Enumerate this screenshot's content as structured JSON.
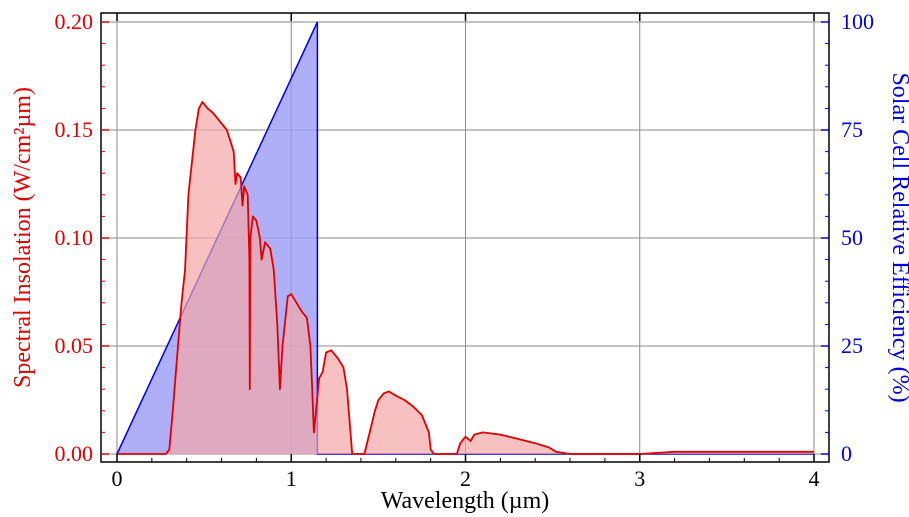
{
  "chart_data": {
    "type": "area",
    "xlabel": "Wavelength (µm)",
    "ylabel_left": "Spectral Insolation (W/cm²µm)",
    "ylabel_right": "Solar Cell Relative Efficiency (%)",
    "xlim": [
      0,
      4
    ],
    "ylim_left": [
      0,
      0.2
    ],
    "ylim_right": [
      0,
      100
    ],
    "x_ticks": [
      "0",
      "1",
      "2",
      "3",
      "4"
    ],
    "y_left_ticks": [
      "0.00",
      "0.05",
      "0.10",
      "0.15",
      "0.20"
    ],
    "y_right_ticks": [
      "0",
      "25",
      "50",
      "75",
      "100"
    ],
    "grid": true,
    "colors": {
      "insolation": "#e00000",
      "insolation_fill": "#f4a6a6",
      "efficiency": "#0000e0",
      "efficiency_fill": "#9b9bf5"
    },
    "series": [
      {
        "axis": "left",
        "color": "#e00000",
        "points": [
          [
            0.0,
            0.0
          ],
          [
            0.28,
            0.0
          ],
          [
            0.3,
            0.002
          ],
          [
            0.32,
            0.02
          ],
          [
            0.35,
            0.05
          ],
          [
            0.37,
            0.07
          ],
          [
            0.39,
            0.085
          ],
          [
            0.41,
            0.12
          ],
          [
            0.43,
            0.135
          ],
          [
            0.45,
            0.15
          ],
          [
            0.47,
            0.16
          ],
          [
            0.49,
            0.163
          ],
          [
            0.52,
            0.16
          ],
          [
            0.55,
            0.158
          ],
          [
            0.58,
            0.155
          ],
          [
            0.6,
            0.153
          ],
          [
            0.63,
            0.15
          ],
          [
            0.65,
            0.145
          ],
          [
            0.67,
            0.14
          ],
          [
            0.68,
            0.125
          ],
          [
            0.69,
            0.13
          ],
          [
            0.71,
            0.128
          ],
          [
            0.72,
            0.115
          ],
          [
            0.73,
            0.124
          ],
          [
            0.75,
            0.12
          ],
          [
            0.76,
            0.09
          ],
          [
            0.762,
            0.03
          ],
          [
            0.765,
            0.1
          ],
          [
            0.78,
            0.11
          ],
          [
            0.8,
            0.108
          ],
          [
            0.82,
            0.1
          ],
          [
            0.83,
            0.09
          ],
          [
            0.85,
            0.098
          ],
          [
            0.88,
            0.095
          ],
          [
            0.9,
            0.085
          ],
          [
            0.92,
            0.06
          ],
          [
            0.935,
            0.03
          ],
          [
            0.95,
            0.05
          ],
          [
            0.98,
            0.073
          ],
          [
            1.0,
            0.074
          ],
          [
            1.03,
            0.07
          ],
          [
            1.06,
            0.066
          ],
          [
            1.09,
            0.063
          ],
          [
            1.11,
            0.05
          ],
          [
            1.12,
            0.03
          ],
          [
            1.13,
            0.01
          ],
          [
            1.14,
            0.018
          ],
          [
            1.16,
            0.035
          ],
          [
            1.18,
            0.038
          ],
          [
            1.2,
            0.047
          ],
          [
            1.23,
            0.048
          ],
          [
            1.25,
            0.046
          ],
          [
            1.27,
            0.044
          ],
          [
            1.3,
            0.04
          ],
          [
            1.32,
            0.03
          ],
          [
            1.34,
            0.01
          ],
          [
            1.35,
            0.0
          ],
          [
            1.42,
            0.0
          ],
          [
            1.45,
            0.01
          ],
          [
            1.48,
            0.02
          ],
          [
            1.5,
            0.025
          ],
          [
            1.53,
            0.028
          ],
          [
            1.56,
            0.029
          ],
          [
            1.6,
            0.027
          ],
          [
            1.65,
            0.025
          ],
          [
            1.7,
            0.022
          ],
          [
            1.75,
            0.018
          ],
          [
            1.79,
            0.01
          ],
          [
            1.8,
            0.002
          ],
          [
            1.82,
            0.0
          ],
          [
            1.95,
            0.0
          ],
          [
            1.97,
            0.005
          ],
          [
            2.0,
            0.008
          ],
          [
            2.03,
            0.006
          ],
          [
            2.05,
            0.009
          ],
          [
            2.1,
            0.01
          ],
          [
            2.2,
            0.009
          ],
          [
            2.3,
            0.007
          ],
          [
            2.4,
            0.005
          ],
          [
            2.48,
            0.003
          ],
          [
            2.52,
            0.001
          ],
          [
            2.6,
            0.0
          ],
          [
            3.0,
            0.0
          ],
          [
            3.2,
            0.001
          ],
          [
            3.5,
            0.001
          ],
          [
            3.8,
            0.001
          ],
          [
            4.0,
            0.001
          ]
        ]
      },
      {
        "axis": "right",
        "color": "#0000e0",
        "points": [
          [
            0.0,
            0.0
          ],
          [
            1.15,
            100
          ],
          [
            1.15,
            0.0
          ],
          [
            4.0,
            0.0
          ]
        ]
      }
    ]
  }
}
